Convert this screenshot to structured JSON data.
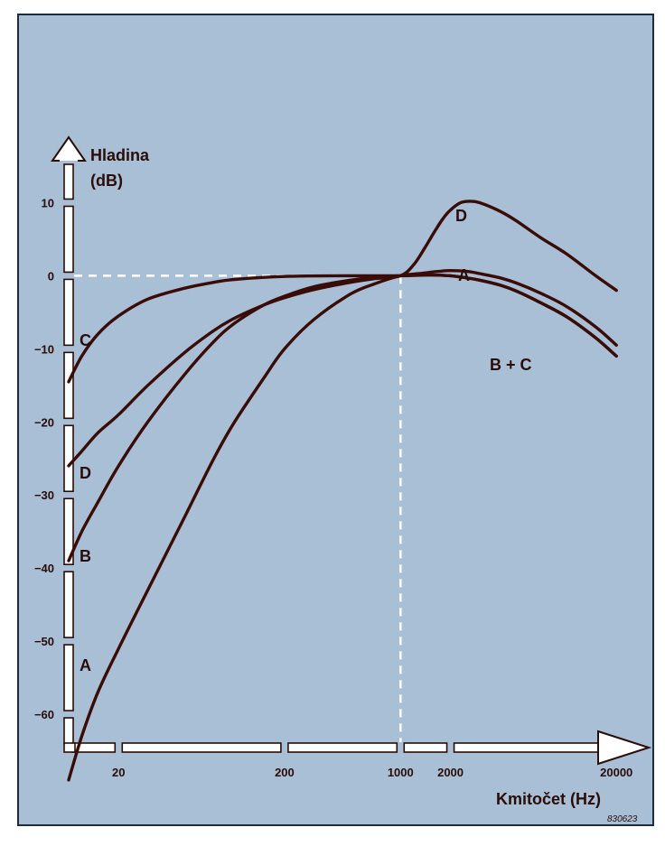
{
  "chart_data": {
    "type": "line",
    "title": "",
    "ylabel_line1": "Hladina",
    "ylabel_line2": "(dB)",
    "xlabel": "Kmitočet (Hz)",
    "x_scale": "log",
    "xlim": [
      10,
      25000
    ],
    "ylim": [
      -70,
      15
    ],
    "x_ticks": [
      20,
      200,
      1000,
      2000,
      20000
    ],
    "x_tick_labels": [
      "20",
      "200",
      "1000",
      "2000",
      "20000"
    ],
    "y_ticks": [
      10,
      0,
      -10,
      -20,
      -30,
      -40,
      -50,
      -60
    ],
    "y_tick_labels": [
      "10",
      "0",
      "−10",
      "−20",
      "−30",
      "−40",
      "−50",
      "−60"
    ],
    "grid": false,
    "reference_point": {
      "x": 1000,
      "y": 0
    },
    "code": "830623",
    "series": [
      {
        "name": "A",
        "label_end": "A",
        "label_start": "A",
        "points": [
          [
            10,
            -69
          ],
          [
            12,
            -63
          ],
          [
            15,
            -57
          ],
          [
            20,
            -51
          ],
          [
            30,
            -43
          ],
          [
            50,
            -33
          ],
          [
            75,
            -25
          ],
          [
            100,
            -20
          ],
          [
            150,
            -14
          ],
          [
            200,
            -10
          ],
          [
            300,
            -6
          ],
          [
            500,
            -2.5
          ],
          [
            700,
            -1.1
          ],
          [
            1000,
            0
          ],
          [
            1300,
            0.3
          ],
          [
            1700,
            0.6
          ],
          [
            2000,
            0.7
          ],
          [
            2500,
            0.6
          ],
          [
            3000,
            0.3
          ],
          [
            4000,
            -0.3
          ],
          [
            5000,
            -1
          ],
          [
            7000,
            -2.4
          ],
          [
            10000,
            -4.2
          ],
          [
            15000,
            -7
          ],
          [
            20000,
            -9.5
          ]
        ]
      },
      {
        "name": "B",
        "label_start": "B",
        "points": [
          [
            10,
            -39
          ],
          [
            12,
            -35
          ],
          [
            15,
            -31
          ],
          [
            20,
            -26
          ],
          [
            30,
            -20
          ],
          [
            50,
            -13.5
          ],
          [
            75,
            -9
          ],
          [
            100,
            -6.5
          ],
          [
            150,
            -4
          ],
          [
            200,
            -2.8
          ],
          [
            300,
            -1.5
          ],
          [
            500,
            -0.6
          ],
          [
            700,
            -0.2
          ],
          [
            1000,
            0
          ],
          [
            1500,
            0.1
          ],
          [
            2000,
            0
          ],
          [
            2500,
            -0.3
          ],
          [
            3000,
            -0.6
          ],
          [
            4000,
            -1.3
          ],
          [
            5000,
            -2.1
          ],
          [
            7000,
            -3.7
          ],
          [
            10000,
            -5.6
          ],
          [
            15000,
            -8.5
          ],
          [
            20000,
            -11
          ]
        ]
      },
      {
        "name": "C",
        "label_start": "C",
        "points": [
          [
            10,
            -14.5
          ],
          [
            12,
            -11
          ],
          [
            15,
            -8
          ],
          [
            20,
            -5.5
          ],
          [
            30,
            -3.2
          ],
          [
            50,
            -1.7
          ],
          [
            75,
            -0.9
          ],
          [
            100,
            -0.5
          ],
          [
            200,
            -0.1
          ],
          [
            500,
            0
          ],
          [
            1000,
            0
          ],
          [
            1500,
            0.1
          ],
          [
            2000,
            0
          ],
          [
            2500,
            -0.3
          ],
          [
            3000,
            -0.6
          ],
          [
            4000,
            -1.3
          ],
          [
            5000,
            -2.1
          ],
          [
            7000,
            -3.7
          ],
          [
            10000,
            -5.6
          ],
          [
            15000,
            -8.5
          ],
          [
            20000,
            -11
          ]
        ]
      },
      {
        "name": "D",
        "label_start": "D",
        "label_end": "D",
        "points": [
          [
            10,
            -26
          ],
          [
            12,
            -24
          ],
          [
            15,
            -21.5
          ],
          [
            20,
            -19
          ],
          [
            30,
            -15
          ],
          [
            50,
            -10.5
          ],
          [
            75,
            -7.5
          ],
          [
            100,
            -5.8
          ],
          [
            150,
            -4
          ],
          [
            200,
            -3
          ],
          [
            300,
            -1.9
          ],
          [
            500,
            -0.9
          ],
          [
            700,
            -0.4
          ],
          [
            1000,
            0
          ],
          [
            1200,
            1.5
          ],
          [
            1400,
            3.8
          ],
          [
            1600,
            6
          ],
          [
            1800,
            7.8
          ],
          [
            2000,
            9
          ],
          [
            2300,
            10
          ],
          [
            2600,
            10.2
          ],
          [
            3000,
            10
          ],
          [
            4000,
            8.8
          ],
          [
            5000,
            7.5
          ],
          [
            7000,
            5.2
          ],
          [
            10000,
            3
          ],
          [
            15000,
            0
          ],
          [
            20000,
            -2
          ]
        ]
      }
    ],
    "combined_label": "B + C"
  }
}
